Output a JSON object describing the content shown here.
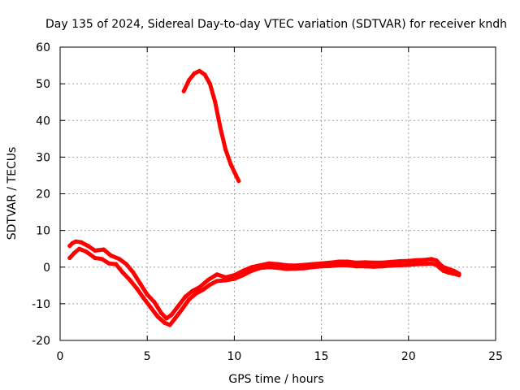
{
  "chart_data": {
    "type": "line",
    "title": "Day 135 of 2024, Sidereal Day-to-day VTEC variation (SDTVAR) for receiver kndh",
    "xlabel": "GPS time / hours",
    "ylabel": "SDTVAR / TECUs",
    "xlim": [
      0,
      25
    ],
    "ylim": [
      -20,
      60
    ],
    "xticks": [
      0,
      5,
      10,
      15,
      20,
      25
    ],
    "xtick_labels": [
      "0",
      "5",
      "10",
      "15",
      "20",
      "25"
    ],
    "yticks": [
      -20,
      -10,
      0,
      10,
      20,
      30,
      40,
      50,
      60
    ],
    "ytick_labels": [
      "-20",
      "-10",
      "0",
      "10",
      "20",
      "30",
      "40",
      "50",
      "60"
    ],
    "grid": true,
    "legend": "none",
    "series_color": "#ff0000",
    "series": [
      {
        "name": "trace-a-upper",
        "x": [
          0.55,
          0.7,
          0.9,
          1.2,
          1.6,
          2.0,
          2.5,
          2.9,
          3.4,
          3.8,
          4.2,
          4.6,
          5.0,
          5.4,
          5.8,
          6.1,
          6.4,
          6.8,
          7.2,
          7.6,
          8.0,
          8.5,
          9.0,
          9.5,
          10.0,
          10.5,
          11.0,
          11.5,
          12.0,
          12.5,
          13.0,
          13.5,
          14.0,
          14.5,
          15.0,
          15.5,
          16.0,
          16.5,
          17.0,
          17.5,
          18.0,
          18.5,
          19.0,
          19.5,
          20.0,
          20.5,
          21.0,
          21.3,
          21.6,
          21.8,
          22.0,
          22.3,
          22.6,
          22.9
        ],
        "y": [
          5.8,
          6.5,
          7.0,
          6.8,
          5.8,
          4.5,
          4.8,
          3.2,
          2.2,
          0.8,
          -1.5,
          -4.5,
          -7.5,
          -9.5,
          -12.5,
          -14.0,
          -13.0,
          -10.5,
          -8.0,
          -6.5,
          -5.5,
          -3.5,
          -2.0,
          -2.8,
          -2.2,
          -1.0,
          0.0,
          0.5,
          1.0,
          0.8,
          0.5,
          0.4,
          0.6,
          0.8,
          1.0,
          1.2,
          1.5,
          1.5,
          1.2,
          1.3,
          1.2,
          1.2,
          1.4,
          1.6,
          1.7,
          1.9,
          2.0,
          2.2,
          1.8,
          0.8,
          0.0,
          -0.5,
          -1.0,
          -1.8
        ]
      },
      {
        "name": "trace-a-lower",
        "x": [
          0.55,
          0.8,
          1.1,
          1.5,
          2.0,
          2.4,
          2.8,
          3.2,
          3.6,
          4.0,
          4.4,
          4.8,
          5.2,
          5.6,
          6.0,
          6.3,
          6.6,
          7.0,
          7.4,
          7.8,
          8.2,
          8.6,
          9.0,
          9.5,
          10.0,
          10.5,
          11.0,
          11.5,
          12.0,
          12.5,
          13.0,
          13.5,
          14.0,
          14.5,
          15.0,
          15.5,
          16.0,
          16.5,
          17.0,
          17.5,
          18.0,
          18.5,
          19.0,
          19.5,
          20.0,
          20.5,
          21.0,
          21.3,
          21.6,
          21.8,
          22.0,
          22.3,
          22.6,
          22.9
        ],
        "y": [
          2.5,
          3.8,
          5.0,
          4.2,
          2.5,
          2.2,
          1.0,
          0.8,
          -1.5,
          -3.5,
          -5.8,
          -8.5,
          -11.0,
          -13.5,
          -15.2,
          -15.8,
          -14.0,
          -11.5,
          -8.8,
          -7.2,
          -6.2,
          -4.8,
          -3.8,
          -3.6,
          -3.2,
          -2.2,
          -1.0,
          -0.2,
          0.0,
          -0.2,
          -0.5,
          -0.4,
          -0.3,
          0.0,
          0.2,
          0.3,
          0.5,
          0.5,
          0.2,
          0.2,
          0.1,
          0.2,
          0.4,
          0.5,
          0.6,
          0.8,
          0.9,
          1.0,
          0.6,
          -0.2,
          -1.0,
          -1.5,
          -1.8,
          -2.2
        ]
      },
      {
        "name": "trace-b",
        "x": [
          7.1,
          7.4,
          7.7,
          8.0,
          8.3,
          8.6,
          8.9,
          9.2,
          9.5,
          9.8,
          10.1,
          10.25
        ],
        "y": [
          48.0,
          51.0,
          52.8,
          53.5,
          52.5,
          50.0,
          45.0,
          38.0,
          32.0,
          28.0,
          25.0,
          23.5
        ]
      }
    ]
  }
}
